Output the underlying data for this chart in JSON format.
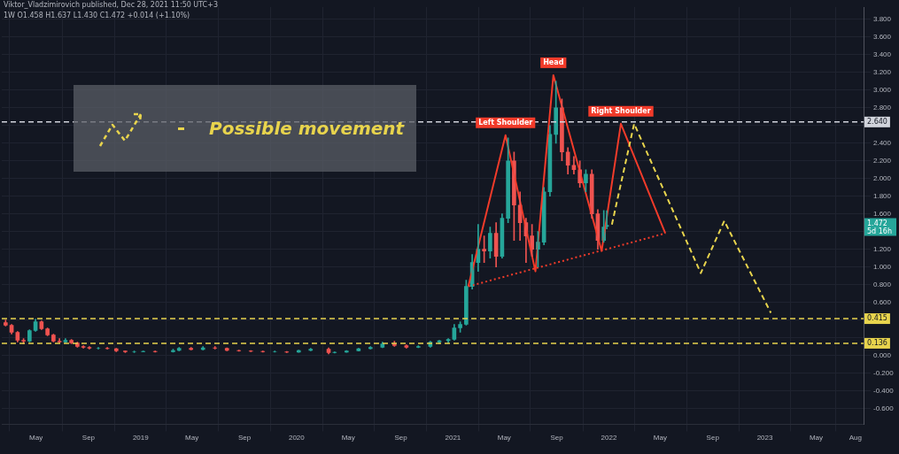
{
  "chart_data": {
    "type": "candlestick",
    "title": "1W  O1.458 H1.637 L1.430 C1.472 +0.014 (+1.10%)",
    "subtitle": "Viktor_Vladzimirovich published, Dec 28, 2021 11:50 UTC+3",
    "x": [
      "2018-02-19",
      "2018-03-05",
      "2018-03-19",
      "2018-04-02",
      "2018-04-16",
      "2018-04-30",
      "2018-05-14",
      "2018-05-28",
      "2018-06-11",
      "2018-06-25",
      "2018-07-09",
      "2018-07-23",
      "2018-08-06",
      "2018-08-20",
      "2018-09-03",
      "2018-09-24",
      "2018-10-15",
      "2018-11-05",
      "2018-11-26",
      "2018-12-17",
      "2019-01-07",
      "2019-02-04",
      "2019-03-18",
      "2019-04-01",
      "2019-04-29",
      "2019-05-27",
      "2019-06-24",
      "2019-07-22",
      "2019-08-19",
      "2019-09-16",
      "2019-10-14",
      "2019-11-11",
      "2019-12-09",
      "2020-01-06",
      "2020-02-03",
      "2020-03-16",
      "2020-03-30",
      "2020-04-27",
      "2020-05-25",
      "2020-06-22",
      "2020-07-20",
      "2020-08-17",
      "2020-09-14",
      "2020-10-12",
      "2020-11-09",
      "2020-11-30",
      "2020-12-21",
      "2021-01-04",
      "2021-01-18",
      "2021-02-01",
      "2021-02-15",
      "2021-03-01",
      "2021-03-15",
      "2021-03-29",
      "2021-04-12",
      "2021-04-26",
      "2021-05-10",
      "2021-05-24",
      "2021-06-07",
      "2021-06-21",
      "2021-07-05",
      "2021-07-19",
      "2021-08-02",
      "2021-08-16",
      "2021-08-30",
      "2021-09-13",
      "2021-09-27",
      "2021-10-11",
      "2021-10-25",
      "2021-11-08",
      "2021-11-22",
      "2021-12-06",
      "2021-12-20",
      "2021-12-27"
    ],
    "ohlc": [
      [
        0.37,
        0.4,
        0.33,
        0.34
      ],
      [
        0.34,
        0.35,
        0.24,
        0.26
      ],
      [
        0.26,
        0.27,
        0.15,
        0.17
      ],
      [
        0.17,
        0.19,
        0.13,
        0.16
      ],
      [
        0.16,
        0.29,
        0.15,
        0.28
      ],
      [
        0.28,
        0.41,
        0.27,
        0.38
      ],
      [
        0.38,
        0.39,
        0.29,
        0.3
      ],
      [
        0.3,
        0.31,
        0.22,
        0.23
      ],
      [
        0.23,
        0.24,
        0.15,
        0.16
      ],
      [
        0.16,
        0.19,
        0.14,
        0.15
      ],
      [
        0.15,
        0.19,
        0.14,
        0.17
      ],
      [
        0.17,
        0.18,
        0.13,
        0.14
      ],
      [
        0.14,
        0.15,
        0.09,
        0.1
      ],
      [
        0.1,
        0.11,
        0.08,
        0.09
      ],
      [
        0.09,
        0.1,
        0.07,
        0.08
      ],
      [
        0.08,
        0.09,
        0.07,
        0.08
      ],
      [
        0.08,
        0.09,
        0.07,
        0.075
      ],
      [
        0.075,
        0.08,
        0.04,
        0.05
      ],
      [
        0.05,
        0.05,
        0.03,
        0.04
      ],
      [
        0.04,
        0.05,
        0.03,
        0.04
      ],
      [
        0.04,
        0.05,
        0.04,
        0.045
      ],
      [
        0.045,
        0.05,
        0.035,
        0.04
      ],
      [
        0.04,
        0.07,
        0.035,
        0.055
      ],
      [
        0.055,
        0.09,
        0.05,
        0.08
      ],
      [
        0.08,
        0.09,
        0.06,
        0.065
      ],
      [
        0.065,
        0.1,
        0.06,
        0.085
      ],
      [
        0.085,
        0.1,
        0.07,
        0.08
      ],
      [
        0.08,
        0.085,
        0.05,
        0.055
      ],
      [
        0.055,
        0.06,
        0.045,
        0.05
      ],
      [
        0.05,
        0.055,
        0.04,
        0.045
      ],
      [
        0.045,
        0.05,
        0.035,
        0.04
      ],
      [
        0.04,
        0.05,
        0.035,
        0.04
      ],
      [
        0.04,
        0.045,
        0.03,
        0.035
      ],
      [
        0.035,
        0.06,
        0.033,
        0.055
      ],
      [
        0.055,
        0.08,
        0.05,
        0.07
      ],
      [
        0.07,
        0.085,
        0.015,
        0.03
      ],
      [
        0.03,
        0.04,
        0.025,
        0.035
      ],
      [
        0.035,
        0.055,
        0.033,
        0.05
      ],
      [
        0.05,
        0.08,
        0.048,
        0.075
      ],
      [
        0.075,
        0.1,
        0.07,
        0.09
      ],
      [
        0.09,
        0.15,
        0.085,
        0.13
      ],
      [
        0.13,
        0.16,
        0.1,
        0.11
      ],
      [
        0.11,
        0.12,
        0.08,
        0.09
      ],
      [
        0.09,
        0.11,
        0.085,
        0.1
      ],
      [
        0.1,
        0.16,
        0.09,
        0.15
      ],
      [
        0.15,
        0.17,
        0.13,
        0.165
      ],
      [
        0.165,
        0.19,
        0.14,
        0.18
      ],
      [
        0.18,
        0.35,
        0.17,
        0.31
      ],
      [
        0.31,
        0.38,
        0.26,
        0.35
      ],
      [
        0.35,
        0.85,
        0.34,
        0.78
      ],
      [
        0.78,
        1.14,
        0.75,
        1.05
      ],
      [
        1.05,
        1.48,
        0.95,
        1.2
      ],
      [
        1.2,
        1.35,
        1.05,
        1.18
      ],
      [
        1.18,
        1.45,
        1.1,
        1.38
      ],
      [
        1.38,
        1.5,
        1.0,
        1.12
      ],
      [
        1.12,
        1.6,
        1.1,
        1.55
      ],
      [
        1.55,
        2.46,
        1.5,
        2.2
      ],
      [
        2.2,
        2.3,
        1.3,
        1.7
      ],
      [
        1.7,
        1.85,
        1.3,
        1.5
      ],
      [
        1.5,
        1.55,
        1.05,
        1.35
      ],
      [
        1.35,
        1.48,
        1.12,
        1.2
      ],
      [
        1.2,
        1.4,
        1.0,
        1.28
      ],
      [
        1.28,
        1.9,
        1.25,
        1.85
      ],
      [
        1.85,
        2.6,
        1.8,
        2.5
      ],
      [
        2.5,
        3.1,
        2.4,
        2.8
      ],
      [
        2.8,
        2.9,
        2.2,
        2.3
      ],
      [
        2.3,
        2.35,
        2.05,
        2.15
      ],
      [
        2.15,
        2.25,
        2.05,
        2.1
      ],
      [
        2.1,
        2.2,
        1.9,
        1.95
      ],
      [
        1.95,
        2.1,
        1.85,
        2.05
      ],
      [
        2.05,
        2.1,
        1.55,
        1.6
      ],
      [
        1.6,
        1.65,
        1.2,
        1.3
      ],
      [
        1.3,
        1.64,
        1.28,
        1.45
      ],
      [
        1.458,
        1.637,
        1.43,
        1.472
      ]
    ],
    "series": [
      {
        "type": "line",
        "name": "Possible movement",
        "color": "#e8d44d",
        "line_style": "dashed",
        "x": [
          "2022-01-08",
          "2022-03-01",
          "2022-08-04",
          "2022-09-28",
          "2023-01-15"
        ],
        "values": [
          1.48,
          2.62,
          0.93,
          1.52,
          0.48
        ]
      },
      {
        "type": "line",
        "color": "#f23b2a",
        "line_style": "solid",
        "x": [
          "2021-02-06",
          "2021-05-04",
          "2021-07-13",
          "2021-08-24",
          "2021-12-15",
          "2022-01-29",
          "2022-05-13"
        ],
        "values": [
          0.78,
          2.49,
          0.95,
          3.17,
          1.18,
          2.62,
          1.38
        ]
      },
      {
        "type": "line",
        "color": "#f23b2a",
        "line_style": "dotted",
        "x": [
          "2021-02-06",
          "2022-05-13"
        ],
        "values": [
          0.78,
          1.38
        ]
      }
    ],
    "annotations": [
      {
        "text": "Left Shoulder",
        "x": "2021-05-04",
        "y": 2.49
      },
      {
        "text": "Head",
        "x": "2021-08-24",
        "y": 3.17
      },
      {
        "text": "Right Shoulder",
        "x": "2022-01-29",
        "y": 2.62
      },
      "1.472",
      "5d 16h"
    ],
    "ref_lines": [
      {
        "axis": "y",
        "value": 2.64,
        "label": "2.640",
        "color": "#d1d4dc",
        "line_style": "dashed"
      },
      {
        "axis": "y",
        "value": 0.415,
        "label": "0.415",
        "color": "#e8d44d",
        "line_style": "dashed"
      },
      {
        "axis": "y",
        "value": 0.136,
        "label": "0.136",
        "color": "#e8d44d",
        "line_style": "dashed"
      }
    ],
    "xlim": [
      "2018-02-10",
      "2023-08-20"
    ],
    "xticks": [
      {
        "value": "2018-05-01",
        "label": "May"
      },
      {
        "value": "2018-09-01",
        "label": "Sep"
      },
      {
        "value": "2019-01-01",
        "label": "2019"
      },
      {
        "value": "2019-05-01",
        "label": "May"
      },
      {
        "value": "2019-09-01",
        "label": "Sep"
      },
      {
        "value": "2020-01-01",
        "label": "2020"
      },
      {
        "value": "2020-05-01",
        "label": "May"
      },
      {
        "value": "2020-09-01",
        "label": "Sep"
      },
      {
        "value": "2021-01-01",
        "label": "2021"
      },
      {
        "value": "2021-05-01",
        "label": "May"
      },
      {
        "value": "2021-09-01",
        "label": "Sep"
      },
      {
        "value": "2022-01-01",
        "label": "2022"
      },
      {
        "value": "2022-05-01",
        "label": "May"
      },
      {
        "value": "2022-09-01",
        "label": "Sep"
      },
      {
        "value": "2023-01-01",
        "label": "2023"
      },
      {
        "value": "2023-05-01",
        "label": "May"
      },
      {
        "value": "2023-08-01",
        "label": "Aug"
      }
    ],
    "ylim": [
      -0.78,
      3.94
    ],
    "yticks": [
      {
        "value": -0.6,
        "label": "-0.600"
      },
      {
        "value": -0.4,
        "label": "-0.400"
      },
      {
        "value": -0.2,
        "label": "-0.200"
      },
      {
        "value": 0,
        "label": "0.000"
      },
      {
        "value": 0.2,
        "label": null
      },
      {
        "value": 0.4,
        "label": null
      },
      {
        "value": 0.6,
        "label": "0.600"
      },
      {
        "value": 0.8,
        "label": "0.800"
      },
      {
        "value": 1.0,
        "label": "1.000"
      },
      {
        "value": 1.2,
        "label": "1.200"
      },
      {
        "value": 1.4,
        "label": null
      },
      {
        "value": 1.6,
        "label": "1.600"
      },
      {
        "value": 1.8,
        "label": "1.800"
      },
      {
        "value": 2.0,
        "label": "2.000"
      },
      {
        "value": 2.2,
        "label": "2.200"
      },
      {
        "value": 2.4,
        "label": "2.400"
      },
      {
        "value": 2.6,
        "label": null
      },
      {
        "value": 2.8,
        "label": "2.800"
      },
      {
        "value": 3.0,
        "label": "3.000"
      },
      {
        "value": 3.2,
        "label": "3.200"
      },
      {
        "value": 3.4,
        "label": "3.400"
      },
      {
        "value": 3.6,
        "label": "3.600"
      },
      {
        "value": 3.8,
        "label": "3.800"
      }
    ],
    "grid": true,
    "legend": "top left",
    "marker": "none"
  }
}
